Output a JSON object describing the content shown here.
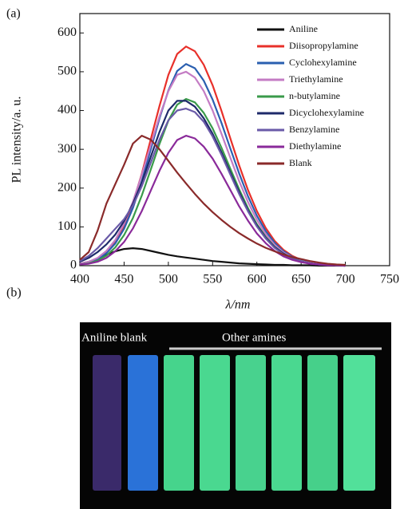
{
  "chart_data": {
    "type": "line",
    "xlabel": "λ/nm",
    "ylabel": "PL intensity/a. u.",
    "x": [
      400,
      410,
      420,
      430,
      440,
      450,
      460,
      470,
      480,
      490,
      500,
      510,
      520,
      530,
      540,
      550,
      560,
      570,
      580,
      590,
      600,
      610,
      620,
      630,
      640,
      650,
      660,
      670,
      680,
      690,
      700
    ],
    "xlim": [
      400,
      750
    ],
    "xticks": [
      400,
      450,
      500,
      550,
      600,
      650,
      700,
      750
    ],
    "ylim": [
      0,
      650
    ],
    "yticks": [
      0,
      100,
      200,
      300,
      400,
      500,
      600
    ],
    "legend": "top-right",
    "series": [
      {
        "name": "Aniline",
        "color": "#111111",
        "values": [
          5,
          10,
          18,
          28,
          37,
          43,
          45,
          43,
          38,
          33,
          28,
          24,
          21,
          18,
          15,
          12,
          10,
          8,
          6,
          5,
          4,
          3,
          2,
          2,
          1,
          1,
          1,
          0,
          0,
          0,
          0
        ]
      },
      {
        "name": "Diisopropylamine",
        "color": "#e8302a",
        "values": [
          4,
          8,
          18,
          34,
          62,
          103,
          162,
          237,
          325,
          412,
          492,
          546,
          565,
          553,
          518,
          465,
          399,
          328,
          259,
          195,
          141,
          97,
          64,
          41,
          25,
          15,
          8,
          5,
          2,
          1,
          1
        ]
      },
      {
        "name": "Cyclohexylamine",
        "color": "#2a5fb0",
        "values": [
          4,
          8,
          16,
          32,
          57,
          95,
          149,
          218,
          299,
          380,
          452,
          502,
          520,
          509,
          477,
          428,
          368,
          302,
          238,
          179,
          129,
          89,
          59,
          37,
          23,
          14,
          7,
          4,
          2,
          1,
          1
        ]
      },
      {
        "name": "Triethylamine",
        "color": "#c47cc4",
        "values": [
          5,
          10,
          20,
          38,
          66,
          108,
          165,
          235,
          310,
          385,
          450,
          492,
          500,
          485,
          450,
          400,
          340,
          278,
          218,
          164,
          118,
          81,
          54,
          34,
          21,
          12,
          7,
          4,
          2,
          1,
          1
        ]
      },
      {
        "name": "n-butylamine",
        "color": "#3a9a4a",
        "values": [
          3,
          6,
          13,
          26,
          47,
          79,
          123,
          181,
          247,
          314,
          374,
          415,
          430,
          421,
          394,
          354,
          304,
          250,
          197,
          148,
          107,
          74,
          49,
          31,
          19,
          11,
          6,
          3,
          2,
          1,
          0
        ]
      },
      {
        "name": "Dicyclohexylamine",
        "color": "#1e2a6a",
        "values": [
          10,
          20,
          35,
          55,
          80,
          115,
          160,
          215,
          280,
          345,
          400,
          425,
          425,
          410,
          380,
          340,
          292,
          240,
          190,
          143,
          104,
          72,
          48,
          31,
          19,
          11,
          6,
          3,
          2,
          1,
          0
        ]
      },
      {
        "name": "Benzylamine",
        "color": "#6a5aa8",
        "values": [
          12,
          25,
          45,
          70,
          95,
          120,
          155,
          205,
          265,
          325,
          375,
          400,
          405,
          396,
          371,
          333,
          286,
          235,
          185,
          140,
          101,
          70,
          46,
          29,
          18,
          11,
          6,
          3,
          2,
          1,
          0
        ]
      },
      {
        "name": "Diethylamine",
        "color": "#8a2a9a",
        "values": [
          3,
          5,
          10,
          20,
          37,
          61,
          96,
          141,
          193,
          245,
          291,
          324,
          335,
          328,
          307,
          276,
          237,
          195,
          153,
          116,
          83,
          58,
          38,
          24,
          15,
          9,
          5,
          3,
          1,
          1,
          0
        ]
      },
      {
        "name": "Blank",
        "color": "#8a2a2a",
        "values": [
          15,
          35,
          90,
          160,
          210,
          260,
          315,
          335,
          325,
          300,
          270,
          240,
          212,
          185,
          160,
          138,
          118,
          100,
          84,
          70,
          57,
          46,
          37,
          29,
          22,
          17,
          12,
          8,
          5,
          3,
          2
        ]
      }
    ]
  },
  "figure": {
    "label_a": "(a)",
    "label_b": "(b)",
    "photo": {
      "left_label": "Aniline blank",
      "right_label": "Other amines"
    }
  }
}
